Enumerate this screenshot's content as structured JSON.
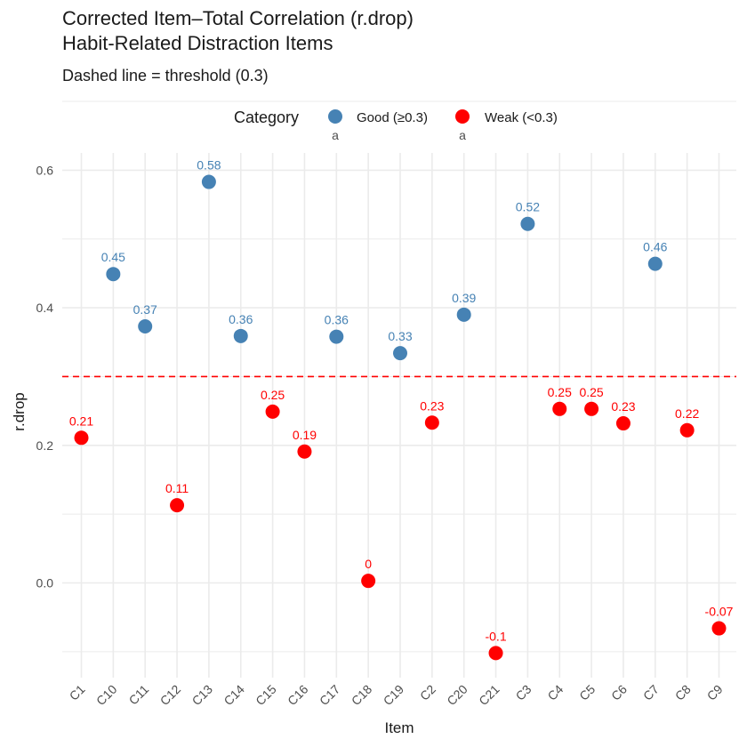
{
  "chart_data": {
    "type": "scatter",
    "title_line1": "Corrected Item–Total Correlation (r.drop)",
    "title_line2": "Habit-Related Distraction Items",
    "subtitle": "Dashed line = threshold (0.3)",
    "xlabel": "Item",
    "ylabel": "r.drop",
    "ylim": [
      -0.14,
      0.62
    ],
    "yticks": [
      0.0,
      0.2,
      0.4,
      0.6
    ],
    "ytick_labels": [
      "0.0",
      "0.2",
      "0.4",
      "0.6"
    ],
    "threshold": 0.3,
    "threshold_color": "#ff0000",
    "grid": true,
    "legend": {
      "title": "Category",
      "position": "top",
      "key_glyph": "a",
      "items": [
        {
          "label": "Good (≥0.3)",
          "color": "#4682b4"
        },
        {
          "label": "Weak (<0.3)",
          "color": "#ff0000"
        }
      ]
    },
    "categories": [
      "C1",
      "C10",
      "C11",
      "C12",
      "C13",
      "C14",
      "C15",
      "C16",
      "C17",
      "C18",
      "C19",
      "C2",
      "C20",
      "C21",
      "C3",
      "C4",
      "C5",
      "C6",
      "C7",
      "C8",
      "C9"
    ],
    "values": [
      0.211,
      0.449,
      0.373,
      0.113,
      0.583,
      0.359,
      0.249,
      0.191,
      0.358,
      0.003,
      0.334,
      0.233,
      0.39,
      -0.102,
      0.522,
      0.253,
      0.253,
      0.232,
      0.464,
      0.222,
      -0.066
    ],
    "labels": [
      "0.21",
      "0.45",
      "0.37",
      "0.11",
      "0.58",
      "0.36",
      "0.25",
      "0.19",
      "0.36",
      "0",
      "0.33",
      "0.23",
      "0.39",
      "-0.1",
      "0.52",
      "0.25",
      "0.25",
      "0.23",
      "0.46",
      "0.22",
      "-0.07"
    ],
    "groups": [
      "Weak",
      "Good",
      "Good",
      "Weak",
      "Good",
      "Good",
      "Weak",
      "Weak",
      "Good",
      "Weak",
      "Good",
      "Weak",
      "Good",
      "Weak",
      "Good",
      "Weak",
      "Weak",
      "Weak",
      "Good",
      "Weak",
      "Weak"
    ]
  }
}
